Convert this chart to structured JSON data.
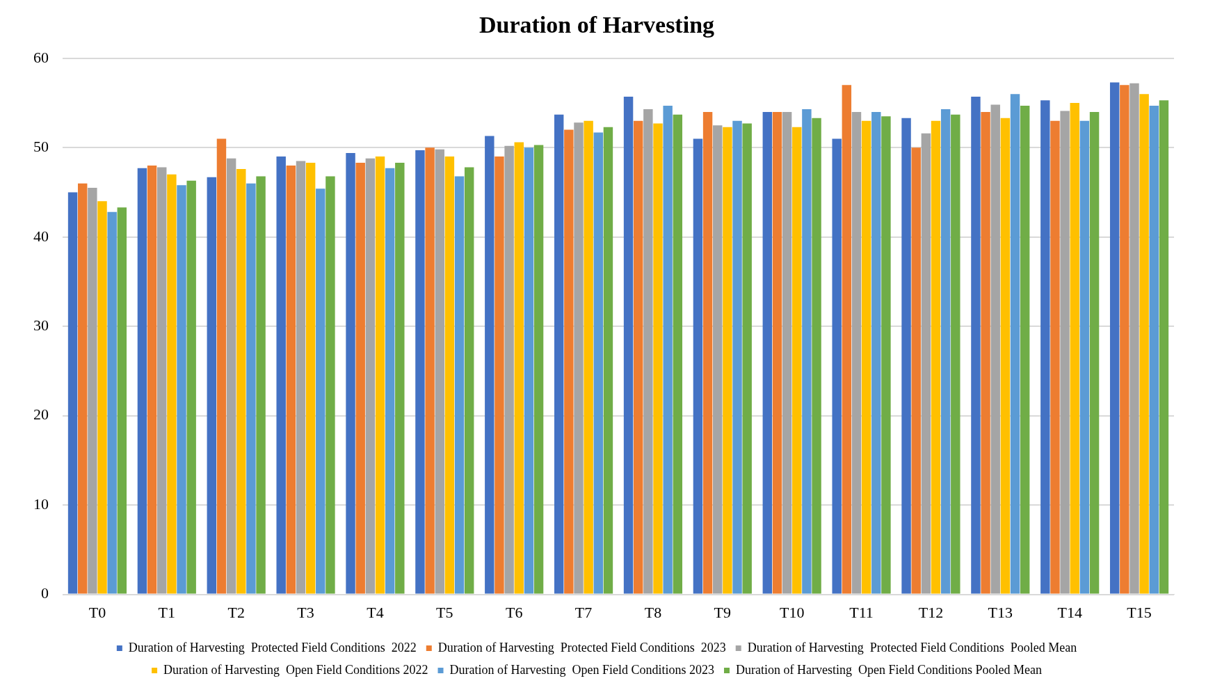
{
  "chart_data": {
    "type": "bar",
    "title": "Duration of Harvesting",
    "categories": [
      "T0",
      "T1",
      "T2",
      "T3",
      "T4",
      "T5",
      "T6",
      "T7",
      "T8",
      "T9",
      "T10",
      "T11",
      "T12",
      "T13",
      "T14",
      "T15"
    ],
    "series": [
      {
        "name": "Duration of Harvesting  Protected Field Conditions  2022",
        "color": "#4472c4",
        "values": [
          45,
          47.7,
          46.7,
          49,
          49.4,
          49.7,
          51.3,
          53.7,
          55.7,
          51,
          54,
          51,
          53.3,
          55.7,
          55.3,
          57.3
        ]
      },
      {
        "name": "Duration of Harvesting  Protected Field Conditions  2023",
        "color": "#ed7d31",
        "values": [
          46,
          48,
          51,
          48,
          48.3,
          50,
          49,
          52,
          53,
          54,
          54,
          57,
          50,
          54,
          53,
          57
        ]
      },
      {
        "name": "Duration of Harvesting  Protected Field Conditions  Pooled Mean",
        "color": "#a5a5a5",
        "values": [
          45.5,
          47.8,
          48.8,
          48.5,
          48.8,
          49.8,
          50.2,
          52.8,
          54.3,
          52.5,
          54,
          54,
          51.6,
          54.8,
          54.1,
          57.2
        ]
      },
      {
        "name": "Duration of Harvesting  Open Field Conditions 2022",
        "color": "#ffc000",
        "values": [
          44,
          47,
          47.6,
          48.3,
          49,
          49,
          50.6,
          53,
          52.7,
          52.3,
          52.3,
          53,
          53,
          53.3,
          55,
          56
        ]
      },
      {
        "name": "Duration of Harvesting  Open Field Conditions 2023",
        "color": "#5b9bd5",
        "values": [
          42.8,
          45.8,
          46,
          45.4,
          47.7,
          46.8,
          50,
          51.7,
          54.7,
          53,
          54.3,
          54,
          54.3,
          56,
          53,
          54.7
        ]
      },
      {
        "name": "Duration of Harvesting  Open Field Conditions Pooled Mean",
        "color": "#70ad47",
        "values": [
          43.3,
          46.3,
          46.8,
          46.8,
          48.3,
          47.8,
          50.3,
          52.3,
          53.7,
          52.7,
          53.3,
          53.5,
          53.7,
          54.7,
          54,
          55.3
        ]
      }
    ],
    "ylim": [
      0,
      60
    ],
    "yticks": [
      0,
      10,
      20,
      30,
      40,
      50,
      60
    ],
    "grid": "y",
    "legend": "bottom"
  }
}
